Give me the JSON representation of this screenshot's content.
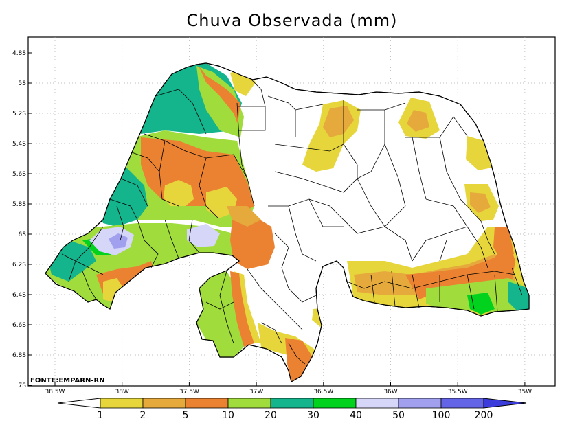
{
  "title": "Chuva Observada (mm)",
  "source": "FONTE:EMPARN-RN",
  "axes": {
    "lat_labels": [
      "4.8S",
      "5S",
      "5.2S",
      "5.4S",
      "5.6S",
      "5.8S",
      "6S",
      "6.2S",
      "6.4S",
      "6.6S",
      "6.8S",
      "7S"
    ],
    "lon_labels": [
      "38.5W",
      "38W",
      "37.5W",
      "37W",
      "36.5W",
      "36W",
      "35.5W",
      "35W"
    ]
  },
  "legend": {
    "labels": [
      "1",
      "2",
      "5",
      "10",
      "20",
      "30",
      "40",
      "50",
      "100",
      "200"
    ],
    "colors": [
      "#ffffff",
      "#e6d63c",
      "#e6aa3c",
      "#eb8232",
      "#a0dc3c",
      "#14b48c",
      "#00d21e",
      "#d6d6f8",
      "#a0a0ee",
      "#6464e6",
      "#3c3cdc"
    ]
  },
  "colors": {
    "c1": "#e6d63c",
    "c2": "#e6aa3c",
    "c5": "#eb8232",
    "c10": "#a0dc3c",
    "c20": "#14b48c",
    "c30": "#00d21e",
    "c50": "#d6d6f8",
    "c100": "#a0a0ee"
  }
}
